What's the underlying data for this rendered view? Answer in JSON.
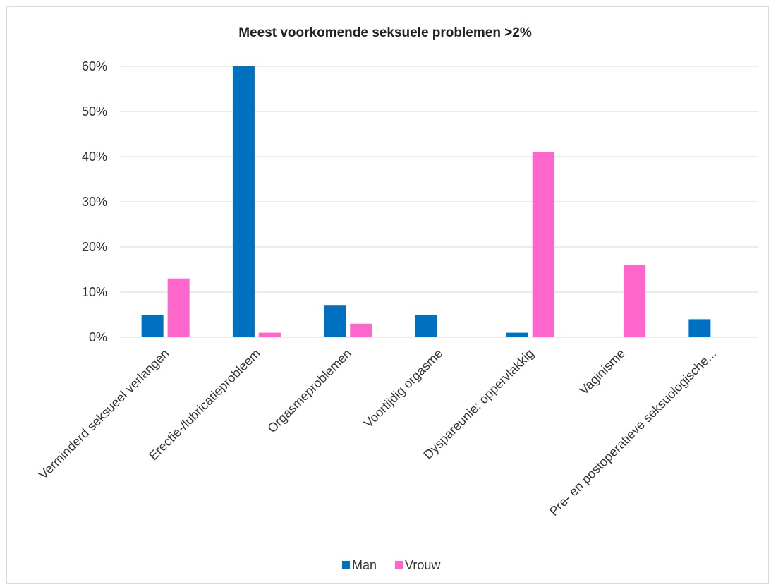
{
  "chart_data": {
    "type": "bar",
    "title": "Meest voorkomende seksuele problemen >2%",
    "categories": [
      "Verminderd seksueel verlangen",
      "Erectie-/lubricatieprobleem",
      "Orgasmeproblemen",
      "Voortijdig orgasme",
      "Dyspareunie: oppervlakkig",
      "Vaginisme",
      "Pre- en postoperatieve seksuologische..."
    ],
    "series": [
      {
        "name": "Man",
        "values": [
          5,
          60,
          7,
          5,
          1,
          0,
          4
        ],
        "color": "#0070c0"
      },
      {
        "name": "Vrouw",
        "values": [
          13,
          1,
          3,
          0,
          41,
          16,
          0
        ],
        "color": "#ff66cc"
      }
    ],
    "yticks": [
      "0%",
      "10%",
      "20%",
      "30%",
      "40%",
      "50%",
      "60%"
    ],
    "ylim": [
      0,
      60
    ],
    "grid": true,
    "legend_position": "bottom"
  }
}
